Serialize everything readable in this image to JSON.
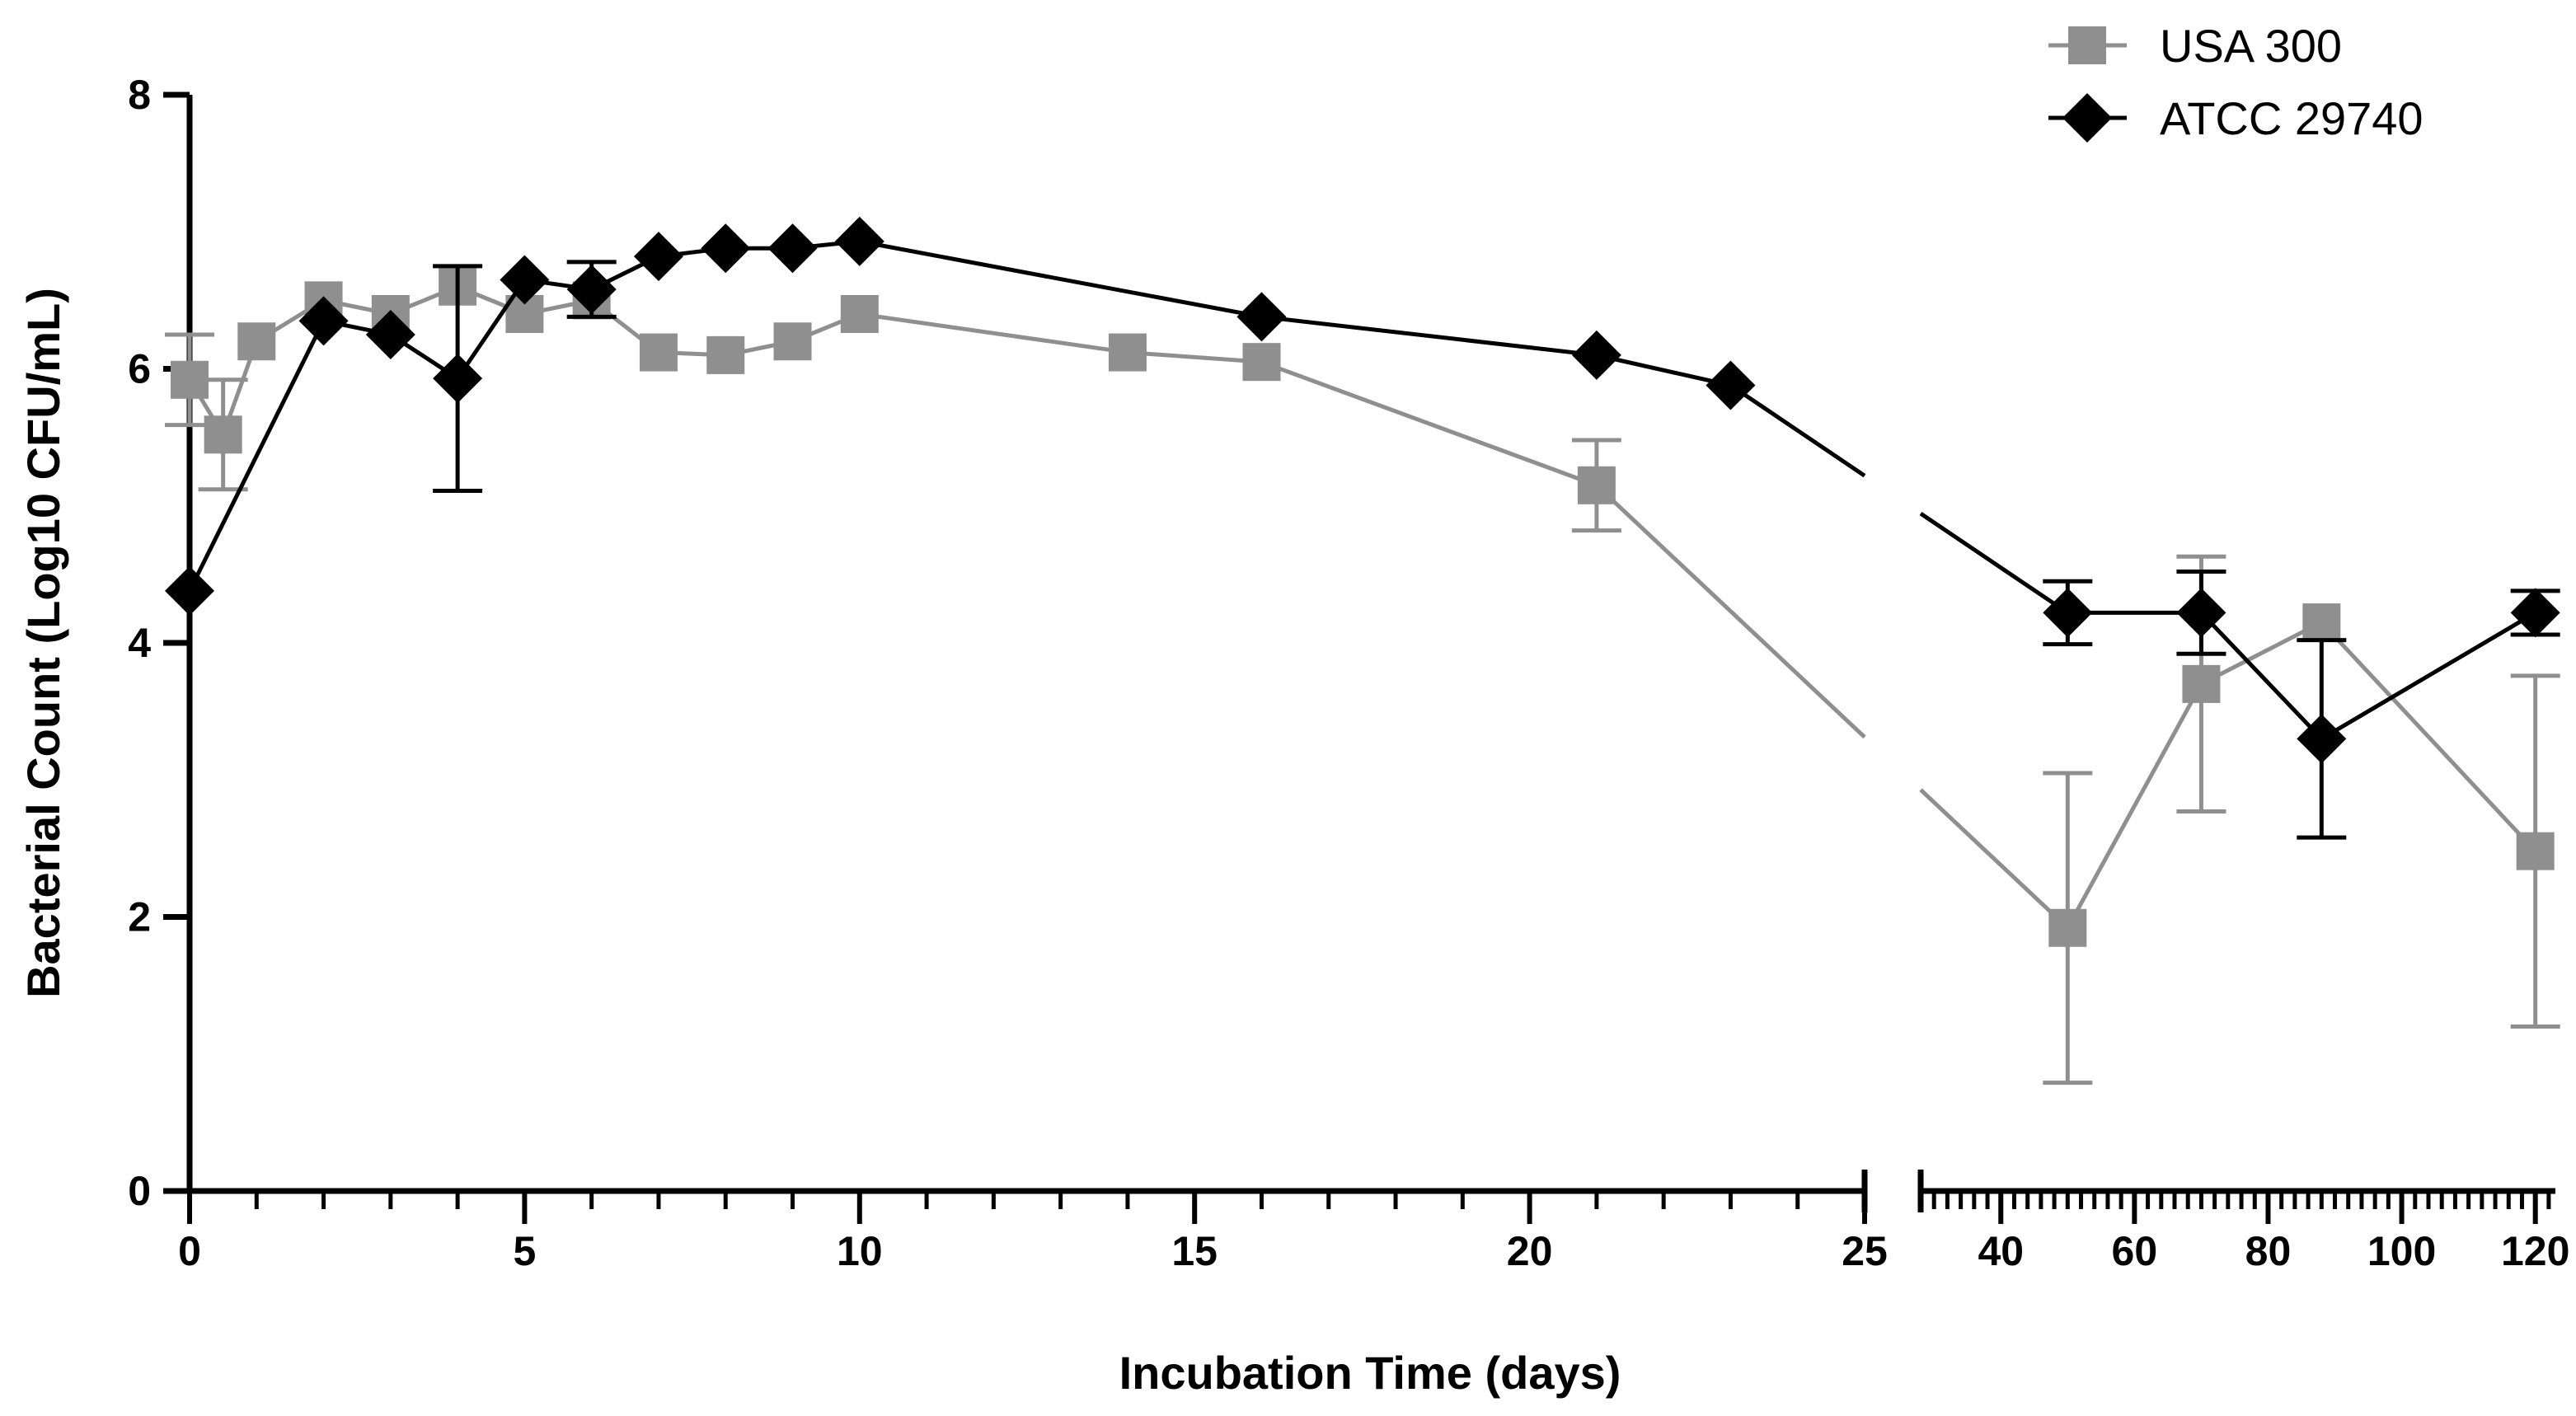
{
  "chart_data": {
    "type": "line",
    "title": "",
    "xlabel": "Incubation Time (days)",
    "ylabel": "Bacterial Count (Log10 CFU/mL)",
    "ylim": [
      0,
      8
    ],
    "yticks": [
      0,
      2,
      4,
      6,
      8
    ],
    "x_axis_break": true,
    "x_segments": [
      {
        "range": [
          0,
          25
        ],
        "major_ticks": [
          0,
          5,
          10,
          15,
          20,
          25
        ],
        "minor_step": 1
      },
      {
        "range": [
          28,
          123
        ],
        "major_ticks": [
          40,
          60,
          80,
          100,
          120
        ],
        "minor_step": 2
      }
    ],
    "legend": {
      "position": "top-right"
    },
    "grid": false,
    "series": [
      {
        "name": "USA 300",
        "color": "#8f8f8f",
        "marker": "square",
        "points": [
          {
            "x": 0,
            "y": 5.92,
            "err": 0.33
          },
          {
            "x": 0.5,
            "y": 5.52,
            "err": 0.4
          },
          {
            "x": 1,
            "y": 6.2
          },
          {
            "x": 2,
            "y": 6.5
          },
          {
            "x": 3,
            "y": 6.4
          },
          {
            "x": 4,
            "y": 6.6
          },
          {
            "x": 5,
            "y": 6.4
          },
          {
            "x": 6,
            "y": 6.5
          },
          {
            "x": 7,
            "y": 6.12
          },
          {
            "x": 8,
            "y": 6.1
          },
          {
            "x": 9,
            "y": 6.2
          },
          {
            "x": 10,
            "y": 6.4
          },
          {
            "x": 14,
            "y": 6.12
          },
          {
            "x": 16,
            "y": 6.05
          },
          {
            "x": 21,
            "y": 5.15,
            "err": 0.33
          },
          {
            "x": 50,
            "y": 1.92,
            "err": 1.13
          },
          {
            "x": 70,
            "y": 3.7,
            "err": 0.93
          },
          {
            "x": 88,
            "y": 4.15
          },
          {
            "x": 120,
            "y": 2.48,
            "err": 1.28
          }
        ]
      },
      {
        "name": "ATCC 29740",
        "color": "#000000",
        "marker": "diamond",
        "points": [
          {
            "x": 0,
            "y": 4.38
          },
          {
            "x": 2,
            "y": 6.35
          },
          {
            "x": 3,
            "y": 6.25
          },
          {
            "x": 4,
            "y": 5.93,
            "err": 0.82
          },
          {
            "x": 5,
            "y": 6.65
          },
          {
            "x": 6,
            "y": 6.58,
            "err": 0.2
          },
          {
            "x": 7,
            "y": 6.82
          },
          {
            "x": 8,
            "y": 6.88
          },
          {
            "x": 9,
            "y": 6.88
          },
          {
            "x": 10,
            "y": 6.93
          },
          {
            "x": 16,
            "y": 6.38
          },
          {
            "x": 21,
            "y": 6.1
          },
          {
            "x": 23,
            "y": 5.88
          },
          {
            "x": 50,
            "y": 4.22,
            "err": 0.23
          },
          {
            "x": 70,
            "y": 4.22,
            "err": 0.3
          },
          {
            "x": 88,
            "y": 3.3,
            "err": 0.72
          },
          {
            "x": 120,
            "y": 4.22,
            "err": 0.16
          }
        ]
      }
    ]
  }
}
